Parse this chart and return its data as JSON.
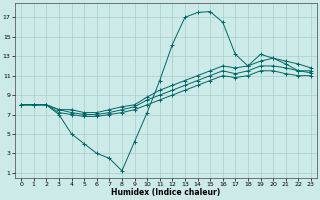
{
  "xlabel": "Humidex (Indice chaleur)",
  "bg_color": "#cceae7",
  "line_color": "#006666",
  "grid_color": "#aacccc",
  "xlim": [
    -0.5,
    23.5
  ],
  "ylim": [
    0.5,
    18.5
  ],
  "xticks": [
    0,
    1,
    2,
    3,
    4,
    5,
    6,
    7,
    8,
    9,
    10,
    11,
    12,
    13,
    14,
    15,
    16,
    17,
    18,
    19,
    20,
    21,
    22,
    23
  ],
  "yticks": [
    1,
    3,
    5,
    7,
    9,
    11,
    13,
    15,
    17
  ],
  "line1_x": [
    0,
    1,
    2,
    3,
    4,
    5,
    6,
    7,
    8,
    9,
    10,
    11,
    12,
    13,
    14,
    15,
    16,
    17,
    18,
    19,
    20,
    21,
    22,
    23
  ],
  "line1_y": [
    8.0,
    8.0,
    8.0,
    7.0,
    5.0,
    4.0,
    3.0,
    2.5,
    1.2,
    4.2,
    7.2,
    10.5,
    14.2,
    17.0,
    17.5,
    17.6,
    16.5,
    13.2,
    12.0,
    12.5,
    12.8,
    12.2,
    11.5,
    11.5
  ],
  "line2_x": [
    0,
    1,
    2,
    3,
    4,
    5,
    6,
    7,
    8,
    9,
    10,
    11,
    12,
    13,
    14,
    15,
    16,
    17,
    18,
    19,
    20,
    21,
    22,
    23
  ],
  "line2_y": [
    8.0,
    8.0,
    8.0,
    7.5,
    7.5,
    7.2,
    7.2,
    7.5,
    7.8,
    8.0,
    8.8,
    9.5,
    10.0,
    10.5,
    11.0,
    11.5,
    12.0,
    11.8,
    12.0,
    13.2,
    12.8,
    12.5,
    12.2,
    11.8
  ],
  "line3_x": [
    0,
    1,
    2,
    3,
    4,
    5,
    6,
    7,
    8,
    9,
    10,
    11,
    12,
    13,
    14,
    15,
    16,
    17,
    18,
    19,
    20,
    21,
    22,
    23
  ],
  "line3_y": [
    8.0,
    8.0,
    8.0,
    7.5,
    7.2,
    7.0,
    7.0,
    7.2,
    7.5,
    7.8,
    8.5,
    9.0,
    9.5,
    10.0,
    10.5,
    11.0,
    11.5,
    11.2,
    11.5,
    12.0,
    12.0,
    11.8,
    11.5,
    11.3
  ],
  "line4_x": [
    0,
    1,
    2,
    3,
    4,
    5,
    6,
    7,
    8,
    9,
    10,
    11,
    12,
    13,
    14,
    15,
    16,
    17,
    18,
    19,
    20,
    21,
    22,
    23
  ],
  "line4_y": [
    8.0,
    8.0,
    8.0,
    7.2,
    7.0,
    6.8,
    6.8,
    7.0,
    7.2,
    7.5,
    8.0,
    8.5,
    9.0,
    9.5,
    10.0,
    10.5,
    11.0,
    10.8,
    11.0,
    11.5,
    11.5,
    11.2,
    11.0,
    11.0
  ]
}
